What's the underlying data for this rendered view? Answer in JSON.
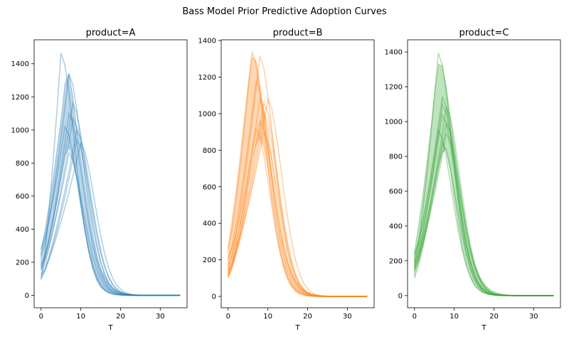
{
  "figure": {
    "suptitle": "Bass Model Prior Predictive Adoption Curves"
  },
  "chart_data": [
    {
      "type": "line",
      "title": "product=A",
      "xlabel": "T",
      "ylabel": "",
      "color": "#1f77b4",
      "xlim": [
        -1.75,
        36.75
      ],
      "ylim": [
        -75,
        1545
      ],
      "xticks": [
        0,
        10,
        20,
        30
      ],
      "yticks": [
        0,
        200,
        400,
        600,
        800,
        1000,
        1200,
        1400
      ],
      "curves": [
        {
          "peak_t": 5,
          "peak": 1465,
          "start": 95
        },
        {
          "peak_t": 7,
          "peak": 1340,
          "start": 240
        },
        {
          "peak_t": 8,
          "peak": 1160,
          "start": 180
        },
        {
          "peak_t": 7,
          "peak": 1100,
          "start": 150
        },
        {
          "peak_t": 8,
          "peak": 1070,
          "start": 130
        },
        {
          "peak_t": 9,
          "peak": 1000,
          "start": 110
        },
        {
          "peak_t": 9,
          "peak": 940,
          "start": 100
        },
        {
          "peak_t": 6,
          "peak": 1020,
          "start": 280
        },
        {
          "peak_t": 10,
          "peak": 920,
          "start": 120
        },
        {
          "peak_t": 7,
          "peak": 860,
          "start": 160
        }
      ],
      "band": {
        "upper": [
          280,
          400,
          540,
          700,
          880,
          1060,
          1280,
          1340,
          1200,
          1000,
          830,
          650,
          480,
          340,
          230,
          160,
          110,
          70,
          45,
          30,
          20,
          12,
          8,
          5,
          3,
          2,
          1,
          1,
          0,
          0,
          0,
          0,
          0,
          0,
          0,
          0
        ],
        "lower": [
          160,
          230,
          320,
          430,
          560,
          700,
          840,
          900,
          820,
          700,
          540,
          390,
          260,
          160,
          90,
          50,
          28,
          15,
          8,
          4,
          2,
          1,
          0,
          0,
          0,
          0,
          0,
          0,
          0,
          0,
          0,
          0,
          0,
          0,
          0,
          0
        ]
      }
    },
    {
      "type": "line",
      "title": "product=B",
      "xlabel": "T",
      "ylabel": "",
      "color": "#ff7f0e",
      "xlim": [
        -1.75,
        36.75
      ],
      "ylim": [
        -62,
        1404
      ],
      "xticks": [
        0,
        10,
        20,
        30
      ],
      "yticks": [
        0,
        200,
        400,
        600,
        800,
        1000,
        1200,
        1400
      ],
      "curves": [
        {
          "peak_t": 6,
          "peak": 1340,
          "start": 260
        },
        {
          "peak_t": 8,
          "peak": 1315,
          "start": 150
        },
        {
          "peak_t": 7,
          "peak": 1180,
          "start": 200
        },
        {
          "peak_t": 8,
          "peak": 1080,
          "start": 120
        },
        {
          "peak_t": 9,
          "peak": 1060,
          "start": 110
        },
        {
          "peak_t": 9,
          "peak": 1000,
          "start": 130
        },
        {
          "peak_t": 8,
          "peak": 960,
          "start": 170
        },
        {
          "peak_t": 10,
          "peak": 1080,
          "start": 105
        },
        {
          "peak_t": 9,
          "peak": 900,
          "start": 140
        },
        {
          "peak_t": 7,
          "peak": 920,
          "start": 210
        }
      ],
      "band": {
        "upper": [
          270,
          420,
          580,
          760,
          960,
          1160,
          1310,
          1290,
          1160,
          1010,
          850,
          680,
          520,
          380,
          270,
          190,
          130,
          85,
          55,
          35,
          22,
          14,
          9,
          5,
          3,
          2,
          1,
          1,
          0,
          0,
          0,
          0,
          0,
          0,
          0,
          0
        ],
        "lower": [
          100,
          160,
          240,
          340,
          460,
          600,
          740,
          830,
          870,
          820,
          700,
          550,
          400,
          270,
          170,
          100,
          55,
          30,
          16,
          8,
          4,
          2,
          1,
          0,
          0,
          0,
          0,
          0,
          0,
          0,
          0,
          0,
          0,
          0,
          0,
          0
        ]
      }
    },
    {
      "type": "line",
      "title": "product=C",
      "xlabel": "T",
      "ylabel": "",
      "color": "#2ca02c",
      "xlim": [
        -1.75,
        36.75
      ],
      "ylim": [
        -70,
        1470
      ],
      "xticks": [
        0,
        10,
        20,
        30
      ],
      "yticks": [
        0,
        200,
        400,
        600,
        800,
        1000,
        1200,
        1400
      ],
      "curves": [
        {
          "peak_t": 6,
          "peak": 1395,
          "start": 180
        },
        {
          "peak_t": 7,
          "peak": 1140,
          "start": 230
        },
        {
          "peak_t": 7,
          "peak": 1100,
          "start": 160
        },
        {
          "peak_t": 8,
          "peak": 1080,
          "start": 150
        },
        {
          "peak_t": 7,
          "peak": 1040,
          "start": 200
        },
        {
          "peak_t": 8,
          "peak": 990,
          "start": 140
        },
        {
          "peak_t": 6,
          "peak": 950,
          "start": 240
        },
        {
          "peak_t": 8,
          "peak": 930,
          "start": 170
        },
        {
          "peak_t": 7,
          "peak": 880,
          "start": 190
        }
      ],
      "band": {
        "upper": [
          250,
          400,
          560,
          740,
          930,
          1150,
          1330,
          1320,
          1200,
          1030,
          860,
          690,
          530,
          390,
          280,
          190,
          130,
          85,
          55,
          35,
          22,
          14,
          9,
          5,
          3,
          2,
          1,
          1,
          0,
          0,
          0,
          0,
          0,
          0,
          0,
          0
        ],
        "lower": [
          100,
          170,
          260,
          370,
          500,
          630,
          740,
          820,
          840,
          720,
          560,
          410,
          280,
          180,
          110,
          65,
          38,
          21,
          11,
          6,
          3,
          1,
          0,
          0,
          0,
          0,
          0,
          0,
          0,
          0,
          0,
          0,
          0,
          0,
          0,
          0
        ]
      }
    }
  ]
}
